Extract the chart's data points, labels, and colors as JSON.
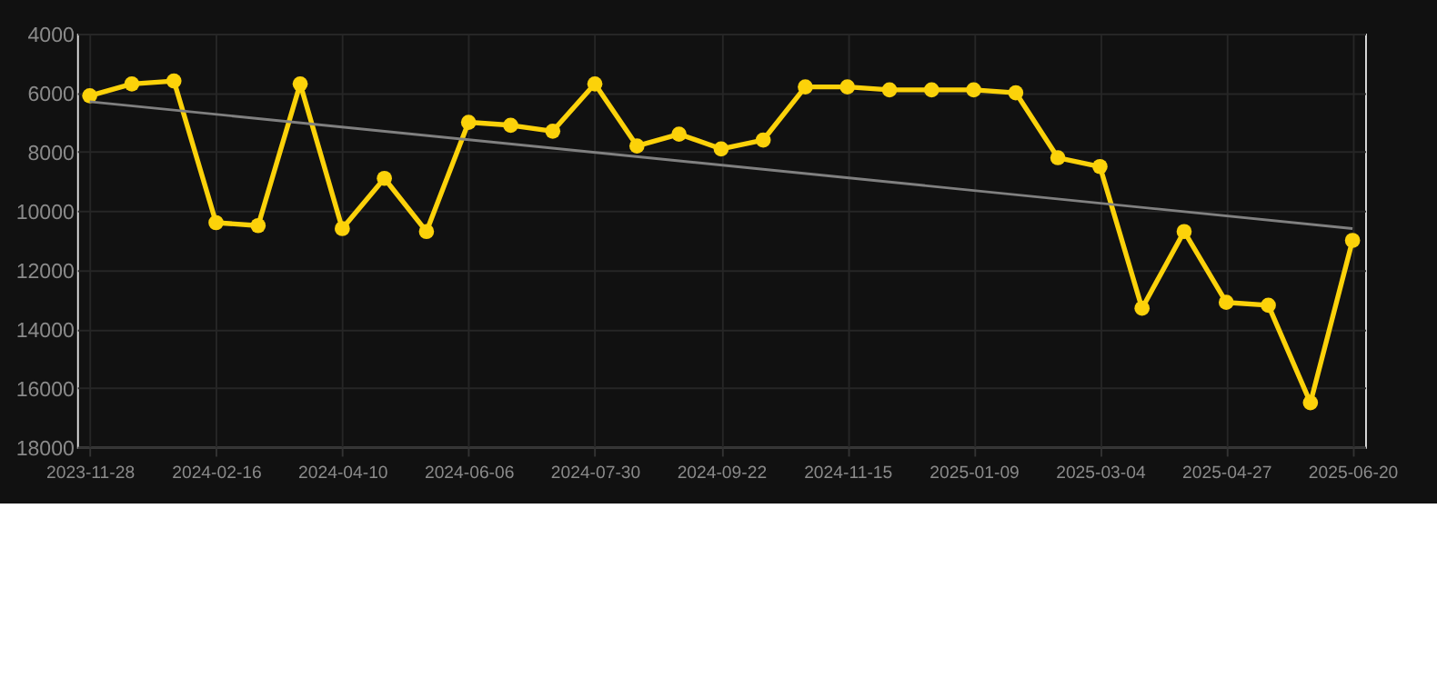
{
  "chart_data": {
    "type": "line",
    "categories": [
      "2023-11-28",
      null,
      null,
      "2024-02-16",
      null,
      null,
      "2024-04-10",
      null,
      null,
      "2024-06-06",
      null,
      null,
      "2024-07-30",
      null,
      null,
      "2024-09-22",
      null,
      null,
      "2024-11-15",
      null,
      null,
      "2025-01-09",
      null,
      null,
      "2025-03-04",
      null,
      null,
      "2025-04-27",
      null,
      null,
      "2025-06-20"
    ],
    "series": [
      {
        "color": "#fcd20a",
        "marker": "circle",
        "values": [
          6100,
          5700,
          5600,
          10400,
          10500,
          5700,
          10600,
          8900,
          10700,
          7000,
          7100,
          7300,
          5700,
          7800,
          7400,
          7900,
          7600,
          5800,
          5800,
          5900,
          5900,
          5900,
          6000,
          8200,
          8500,
          13300,
          10700,
          13100,
          13200,
          16500,
          11000
        ]
      },
      {
        "type": "line",
        "color": "#808080",
        "marker": "none",
        "values": [
          6300,
          null,
          null,
          null,
          null,
          null,
          null,
          null,
          null,
          null,
          null,
          null,
          null,
          null,
          null,
          null,
          null,
          null,
          null,
          null,
          null,
          null,
          null,
          null,
          null,
          null,
          null,
          null,
          null,
          null,
          10600
        ]
      }
    ],
    "ylim": [
      18000,
      4000
    ],
    "yticks": [
      4000,
      6000,
      8000,
      10000,
      12000,
      14000,
      16000,
      18000
    ],
    "grid": true
  }
}
